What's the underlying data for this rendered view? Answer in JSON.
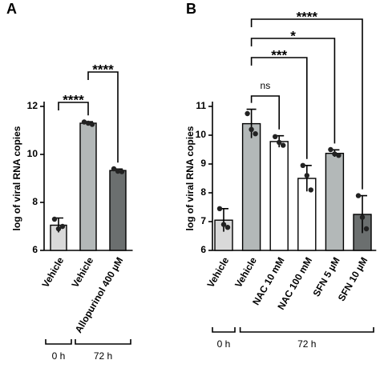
{
  "chart_data": [
    {
      "type": "bar",
      "panel": "A",
      "ylabel": "log of viral RNA copies",
      "categories": [
        "Vehicle",
        "Vehicle",
        "Allopurinol 400 µM"
      ],
      "values": [
        7.05,
        11.3,
        9.33
      ],
      "errors": [
        0.3,
        0.06,
        0.06
      ],
      "points": [
        [
          7.3,
          6.9,
          7.0
        ],
        [
          11.35,
          11.3,
          11.25
        ],
        [
          9.4,
          9.3,
          9.28
        ]
      ],
      "colors": [
        "#d9d9d9",
        "#b3b8b8",
        "#6b6f6f"
      ],
      "ylim": [
        6,
        12
      ],
      "yticks": [
        6,
        8,
        10,
        12
      ],
      "comparisons": [
        {
          "label": "****",
          "pair": [
            0,
            1
          ]
        },
        {
          "label": "****",
          "pair": [
            1,
            2
          ]
        }
      ],
      "groups": [
        {
          "label": "0 h",
          "span": [
            0,
            0
          ]
        },
        {
          "label": "72 h",
          "span": [
            1,
            2
          ]
        }
      ]
    },
    {
      "type": "bar",
      "panel": "B",
      "ylabel": "log of viral RNA copies",
      "categories": [
        "Vehicle",
        "Vehicle",
        "NAC 10 mM",
        "NAC 100 mM",
        "SFN 5 µM",
        "SFN 10 µM"
      ],
      "values": [
        7.05,
        10.4,
        9.78,
        8.5,
        9.37,
        7.25
      ],
      "errors": [
        0.4,
        0.5,
        0.2,
        0.45,
        0.12,
        0.65
      ],
      "points": [
        [
          7.45,
          6.9,
          6.8
        ],
        [
          10.75,
          10.2,
          10.05
        ],
        [
          9.95,
          9.75,
          9.65
        ],
        [
          8.95,
          8.6,
          8.1
        ],
        [
          9.5,
          9.35,
          9.3
        ],
        [
          7.9,
          7.15,
          6.75
        ]
      ],
      "colors": [
        "#d9d9d9",
        "#b3b8b8",
        "#ffffff",
        "#ffffff",
        "#b3b8b8",
        "#6b6f6f"
      ],
      "ylim": [
        6,
        11
      ],
      "yticks": [
        6,
        7,
        8,
        9,
        10,
        11
      ],
      "comparisons": [
        {
          "label": "ns",
          "pair": [
            1,
            2
          ]
        },
        {
          "label": "***",
          "pair": [
            1,
            3
          ]
        },
        {
          "label": "*",
          "pair": [
            1,
            4
          ]
        },
        {
          "label": "****",
          "pair": [
            1,
            5
          ]
        }
      ],
      "groups": [
        {
          "label": "0 h",
          "span": [
            0,
            0
          ]
        },
        {
          "label": "72 h",
          "span": [
            1,
            5
          ]
        }
      ]
    }
  ]
}
